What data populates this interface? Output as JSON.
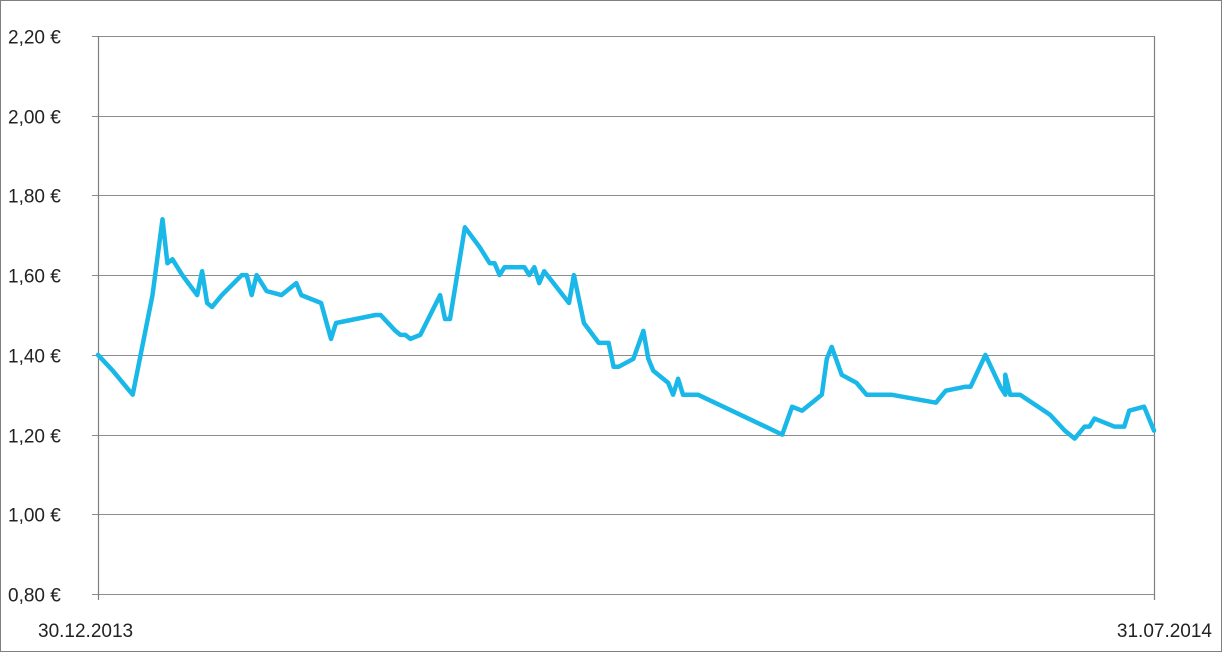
{
  "chart_data": {
    "type": "line",
    "title": "",
    "xlabel": "",
    "ylabel": "",
    "ylim": [
      0.8,
      2.2
    ],
    "y_ticks": [
      0.8,
      1.0,
      1.2,
      1.4,
      1.6,
      1.8,
      2.0,
      2.2
    ],
    "y_tick_labels": [
      "0,80 €",
      "1,00 €",
      "1,20 €",
      "1,40 €",
      "1,60 €",
      "1,80 €",
      "2,00 €",
      "2,20 €"
    ],
    "x_tick_labels": [
      "30.12.2013",
      "31.07.2014"
    ],
    "xlim": [
      "2013-12-30",
      "2014-07-31"
    ],
    "grid": true,
    "legend": "none",
    "line_color": "#1ab8e8",
    "series": [
      {
        "values": [
          [
            "2013-12-30",
            1.4
          ],
          [
            "2014-01-02",
            1.36
          ],
          [
            "2014-01-04",
            1.33
          ],
          [
            "2014-01-06",
            1.3
          ],
          [
            "2014-01-10",
            1.55
          ],
          [
            "2014-01-12",
            1.74
          ],
          [
            "2014-01-13",
            1.63
          ],
          [
            "2014-01-14",
            1.64
          ],
          [
            "2014-01-16",
            1.6
          ],
          [
            "2014-01-19",
            1.55
          ],
          [
            "2014-01-20",
            1.61
          ],
          [
            "2014-01-21",
            1.53
          ],
          [
            "2014-01-22",
            1.52
          ],
          [
            "2014-01-24",
            1.55
          ],
          [
            "2014-01-28",
            1.6
          ],
          [
            "2014-01-29",
            1.6
          ],
          [
            "2014-01-30",
            1.55
          ],
          [
            "2014-01-31",
            1.6
          ],
          [
            "2014-02-02",
            1.56
          ],
          [
            "2014-02-05",
            1.55
          ],
          [
            "2014-02-08",
            1.58
          ],
          [
            "2014-02-09",
            1.55
          ],
          [
            "2014-02-13",
            1.53
          ],
          [
            "2014-02-15",
            1.44
          ],
          [
            "2014-02-16",
            1.48
          ],
          [
            "2014-02-20",
            1.49
          ],
          [
            "2014-02-24",
            1.5
          ],
          [
            "2014-02-25",
            1.5
          ],
          [
            "2014-02-28",
            1.46
          ],
          [
            "2014-03-01",
            1.45
          ],
          [
            "2014-03-02",
            1.45
          ],
          [
            "2014-03-03",
            1.44
          ],
          [
            "2014-03-05",
            1.45
          ],
          [
            "2014-03-09",
            1.55
          ],
          [
            "2014-03-10",
            1.49
          ],
          [
            "2014-03-11",
            1.49
          ],
          [
            "2014-03-14",
            1.72
          ],
          [
            "2014-03-17",
            1.67
          ],
          [
            "2014-03-19",
            1.63
          ],
          [
            "2014-03-20",
            1.63
          ],
          [
            "2014-03-21",
            1.6
          ],
          [
            "2014-03-22",
            1.62
          ],
          [
            "2014-03-26",
            1.62
          ],
          [
            "2014-03-27",
            1.6
          ],
          [
            "2014-03-28",
            1.62
          ],
          [
            "2014-03-29",
            1.58
          ],
          [
            "2014-03-30",
            1.61
          ],
          [
            "2014-04-04",
            1.53
          ],
          [
            "2014-04-05",
            1.6
          ],
          [
            "2014-04-07",
            1.48
          ],
          [
            "2014-04-10",
            1.43
          ],
          [
            "2014-04-12",
            1.43
          ],
          [
            "2014-04-13",
            1.37
          ],
          [
            "2014-04-14",
            1.37
          ],
          [
            "2014-04-17",
            1.39
          ],
          [
            "2014-04-19",
            1.46
          ],
          [
            "2014-04-20",
            1.39
          ],
          [
            "2014-04-21",
            1.36
          ],
          [
            "2014-04-24",
            1.33
          ],
          [
            "2014-04-25",
            1.3
          ],
          [
            "2014-04-26",
            1.34
          ],
          [
            "2014-04-27",
            1.3
          ],
          [
            "2014-04-28",
            1.3
          ],
          [
            "2014-04-30",
            1.3
          ],
          [
            "2014-05-17",
            1.2
          ],
          [
            "2014-05-19",
            1.27
          ],
          [
            "2014-05-21",
            1.26
          ],
          [
            "2014-05-25",
            1.3
          ],
          [
            "2014-05-26",
            1.39
          ],
          [
            "2014-05-27",
            1.42
          ],
          [
            "2014-05-29",
            1.35
          ],
          [
            "2014-06-01",
            1.33
          ],
          [
            "2014-06-03",
            1.3
          ],
          [
            "2014-06-04",
            1.3
          ],
          [
            "2014-06-05",
            1.3
          ],
          [
            "2014-06-08",
            1.3
          ],
          [
            "2014-06-17",
            1.28
          ],
          [
            "2014-06-19",
            1.31
          ],
          [
            "2014-06-23",
            1.32
          ],
          [
            "2014-06-24",
            1.32
          ],
          [
            "2014-06-27",
            1.4
          ],
          [
            "2014-06-30",
            1.32
          ],
          [
            "2014-07-01",
            1.3
          ],
          [
            "2014-07-01",
            1.35
          ],
          [
            "2014-07-02",
            1.3
          ],
          [
            "2014-07-04",
            1.3
          ],
          [
            "2014-07-10",
            1.25
          ],
          [
            "2014-07-13",
            1.21
          ],
          [
            "2014-07-15",
            1.19
          ],
          [
            "2014-07-17",
            1.22
          ],
          [
            "2014-07-18",
            1.22
          ],
          [
            "2014-07-19",
            1.24
          ],
          [
            "2014-07-23",
            1.22
          ],
          [
            "2014-07-25",
            1.22
          ],
          [
            "2014-07-26",
            1.26
          ],
          [
            "2014-07-29",
            1.27
          ],
          [
            "2014-07-31",
            1.21
          ]
        ]
      }
    ]
  }
}
